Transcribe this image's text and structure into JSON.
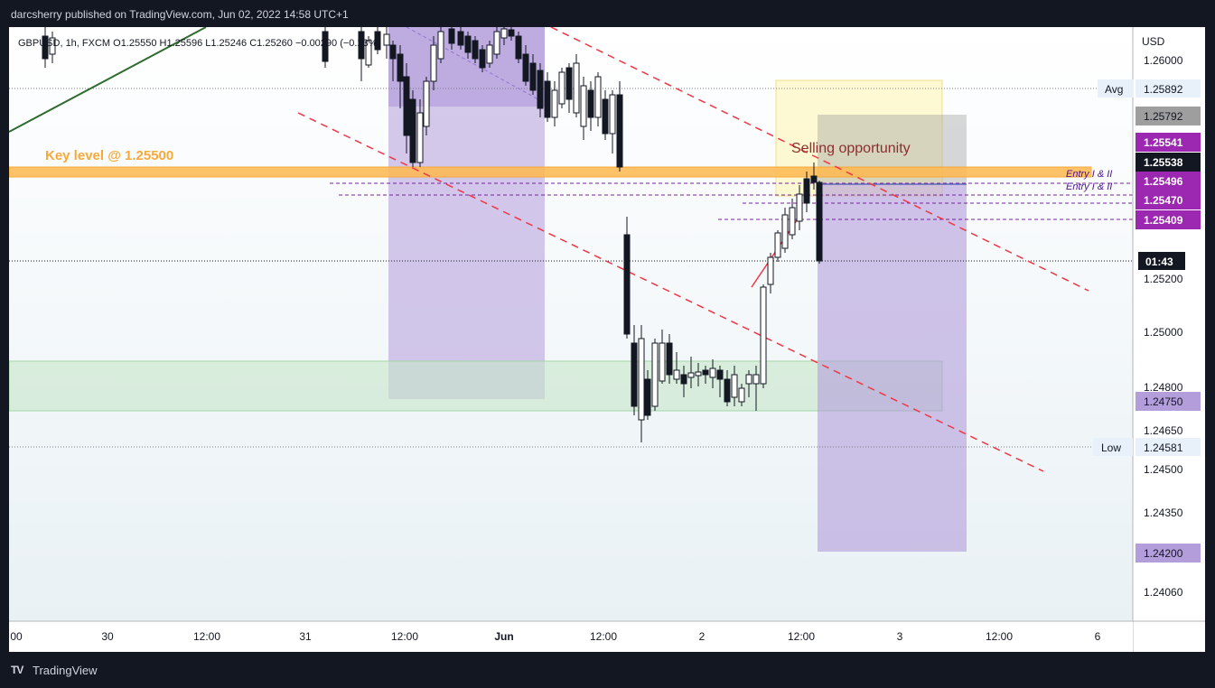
{
  "header": {
    "text": "darcsherry published on TradingView.com, Jun 02, 2022 14:58 UTC+1"
  },
  "symbol_info": "GBPUSD, 1h, FXCM  O1.25550  H1.25596  L1.25246  C1.25260  −0.00290 (−0.23%)",
  "annotations": {
    "key_level": "Key level @ 1.25500",
    "selling": "Selling opportunity",
    "entry_1": "Entry I & II",
    "entry_2": "Entry I & II"
  },
  "price_axis": {
    "currency": "USD",
    "ticks": [
      "1.26000",
      "1.25200",
      "1.25000",
      "1.24800",
      "1.24650",
      "1.24500",
      "1.24350",
      "1.24060"
    ]
  },
  "price_labels": {
    "avg_name": "Avg",
    "avg_value": "1.25892",
    "grey_value": "1.25792",
    "p1": "1.25541",
    "current": "1.25538",
    "p2": "1.25496",
    "p3": "1.25470",
    "p4": "1.25409",
    "countdown": "01:43",
    "green_value": "1.24750",
    "low_name": "Low",
    "low_value": "1.24581",
    "target": "1.24200"
  },
  "time_axis": [
    "00",
    "30",
    "12:00",
    "31",
    "12:00",
    "Jun",
    "12:00",
    "2",
    "12:00",
    "3",
    "12:00",
    "6"
  ],
  "colors": {
    "orange": "#f7a93a",
    "purple_label": "#9c27b0",
    "red_dash": "#f23645",
    "trend_green": "#2e6b2e",
    "zone_green": "#d7efd9",
    "zone_purple": "#b39ddb"
  },
  "footer": {
    "logo": "TV",
    "brand": "TradingView"
  },
  "chart_data": {
    "type": "candlestick",
    "symbol": "GBPUSD",
    "interval": "1h",
    "open": 1.2555,
    "high": 1.25596,
    "low": 1.25246,
    "close": 1.2526,
    "change": -0.0029,
    "change_pct": -0.23,
    "key_level": 1.255,
    "ylim": [
      1.2395,
      1.2622
    ]
  }
}
